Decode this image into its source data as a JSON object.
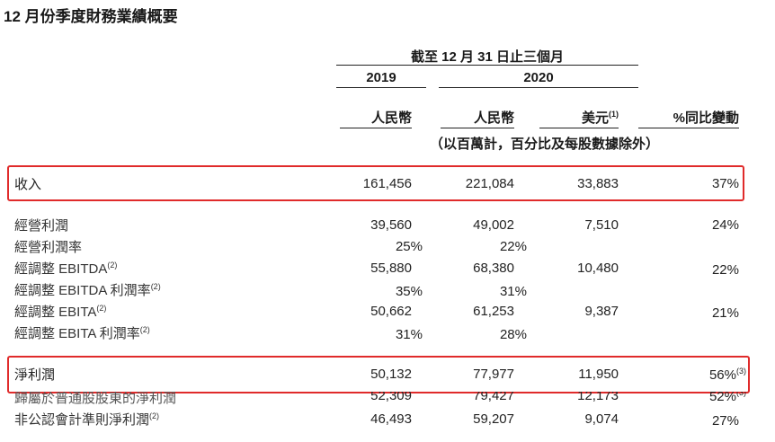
{
  "title": "12 月份季度財務業績概要",
  "header": {
    "period": "截至 12 月 31 日止三個月",
    "year_2019": "2019",
    "year_2020": "2020",
    "col_rmb_2019": "人民幣",
    "col_rmb_2020": "人民幣",
    "col_usd": "美元",
    "col_usd_note": "(1)",
    "col_yoy": "%同比變動",
    "unit_note": "（以百萬計，百分比及每股數據除外）"
  },
  "rows": {
    "revenue": {
      "label": "收入",
      "v2019": "161,456",
      "v2020": "221,084",
      "usd": "33,883",
      "yoy": "37%"
    },
    "op_income": {
      "label": "經營利潤",
      "v2019": "39,560",
      "v2020": "49,002",
      "usd": "7,510",
      "yoy": "24%"
    },
    "op_margin": {
      "label": "經營利潤率",
      "v2019": "25%",
      "v2020": "22%"
    },
    "adj_ebitda": {
      "label": "經調整 EBITDA",
      "note": "(2)",
      "v2019": "55,880",
      "v2020": "68,380",
      "usd": "10,480",
      "yoy": "22%"
    },
    "adj_ebitda_margin": {
      "label": "經調整 EBITDA 利潤率",
      "note": "(2)",
      "v2019": "35%",
      "v2020": "31%"
    },
    "adj_ebita": {
      "label": "經調整 EBITA",
      "note": "(2)",
      "v2019": "50,662",
      "v2020": "61,253",
      "usd": "9,387",
      "yoy": "21%"
    },
    "adj_ebita_margin": {
      "label": "經調整 EBITA 利潤率",
      "note": "(2)",
      "v2019": "31%",
      "v2020": "28%"
    },
    "net_income": {
      "label": "淨利潤",
      "v2019": "50,132",
      "v2020": "77,977",
      "usd": "11,950",
      "yoy": "56%",
      "yoy_note": "(3)"
    },
    "net_income_attr": {
      "label": "歸屬於普通股股東的淨利潤",
      "v2019": "52,309",
      "v2020": "79,427",
      "usd": "12,173",
      "yoy": "52%",
      "yoy_note": "(3)"
    },
    "non_gaap_net_income": {
      "label": "非公認會計準則淨利潤",
      "note": "(2)",
      "v2019": "46,493",
      "v2020": "59,207",
      "usd": "9,074",
      "yoy": "27%"
    }
  },
  "colors": {
    "highlight": "#e02b2b"
  }
}
